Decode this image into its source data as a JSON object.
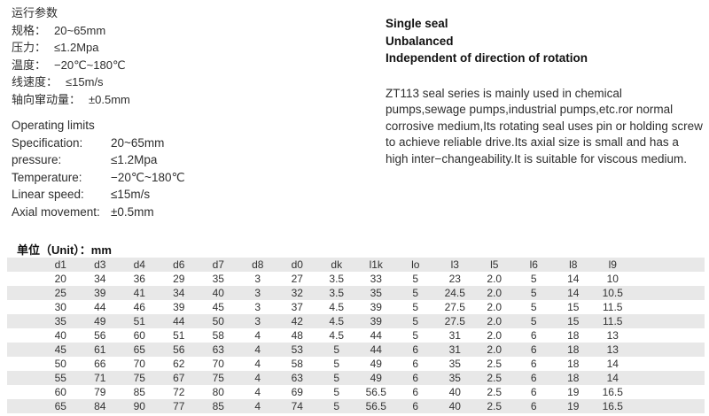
{
  "cn_params": {
    "title": "运行参数",
    "rows": [
      {
        "label": "规格：",
        "value": "20~65mm"
      },
      {
        "label": "压力：",
        "value": "≤1.2Mpa"
      },
      {
        "label": "温度：",
        "value": "−20℃~180℃"
      },
      {
        "label": "线速度：",
        "value": "≤15m/s"
      },
      {
        "label": "轴向窜动量：",
        "value": "±0.5mm"
      }
    ]
  },
  "en_params": {
    "title": "Operating limits",
    "rows": [
      {
        "label": "Specification:",
        "value": "20~65mm"
      },
      {
        "label": "pressure:",
        "value": "≤1.2Mpa"
      },
      {
        "label": "Temperature:",
        "value": "−20℃~180℃"
      },
      {
        "label": "Linear speed:",
        "value": "≤15m/s"
      },
      {
        "label": "Axial movement:",
        "value": "±0.5mm"
      }
    ]
  },
  "features": [
    "Single seal",
    "Unbalanced",
    "Independent of direction of rotation"
  ],
  "description": "ZT113 seal series is mainly used in chemical pumps,sewage pumps,industrial pumps,etc.ror normal corrosive medium,Its rotating seal uses pin or holding screw to achieve reliable drive.Its axial size is small and has a high inter−changeability.It is suitable for viscous medium.",
  "unit_label": "单位（Unit）：mm",
  "table": {
    "headers": [
      "d1",
      "d3",
      "d4",
      "d6",
      "d7",
      "d8",
      "d0",
      "dk",
      "l1k",
      "lo",
      "l3",
      "l5",
      "l6",
      "l8",
      "l9"
    ],
    "rows": [
      [
        "20",
        "34",
        "36",
        "29",
        "35",
        "3",
        "27",
        "3.5",
        "33",
        "5",
        "23",
        "2.0",
        "5",
        "14",
        "10"
      ],
      [
        "25",
        "39",
        "41",
        "34",
        "40",
        "3",
        "32",
        "3.5",
        "35",
        "5",
        "24.5",
        "2.0",
        "5",
        "14",
        "10.5"
      ],
      [
        "30",
        "44",
        "46",
        "39",
        "45",
        "3",
        "37",
        "4.5",
        "39",
        "5",
        "27.5",
        "2.0",
        "5",
        "15",
        "11.5"
      ],
      [
        "35",
        "49",
        "51",
        "44",
        "50",
        "3",
        "42",
        "4.5",
        "39",
        "5",
        "27.5",
        "2.0",
        "5",
        "15",
        "11.5"
      ],
      [
        "40",
        "56",
        "60",
        "51",
        "58",
        "4",
        "48",
        "4.5",
        "44",
        "5",
        "31",
        "2.0",
        "6",
        "18",
        "13"
      ],
      [
        "45",
        "61",
        "65",
        "56",
        "63",
        "4",
        "53",
        "5",
        "44",
        "6",
        "31",
        "2.0",
        "6",
        "18",
        "13"
      ],
      [
        "50",
        "66",
        "70",
        "62",
        "70",
        "4",
        "58",
        "5",
        "49",
        "6",
        "35",
        "2.5",
        "6",
        "18",
        "14"
      ],
      [
        "55",
        "71",
        "75",
        "67",
        "75",
        "4",
        "63",
        "5",
        "49",
        "6",
        "35",
        "2.5",
        "6",
        "18",
        "14"
      ],
      [
        "60",
        "79",
        "85",
        "72",
        "80",
        "4",
        "69",
        "5",
        "56.5",
        "6",
        "40",
        "2.5",
        "6",
        "19",
        "16.5"
      ],
      [
        "65",
        "84",
        "90",
        "77",
        "85",
        "4",
        "74",
        "5",
        "56.5",
        "6",
        "40",
        "2.5",
        "6",
        "19",
        "16.5"
      ]
    ],
    "zebra_color": "#e8e8e8"
  }
}
